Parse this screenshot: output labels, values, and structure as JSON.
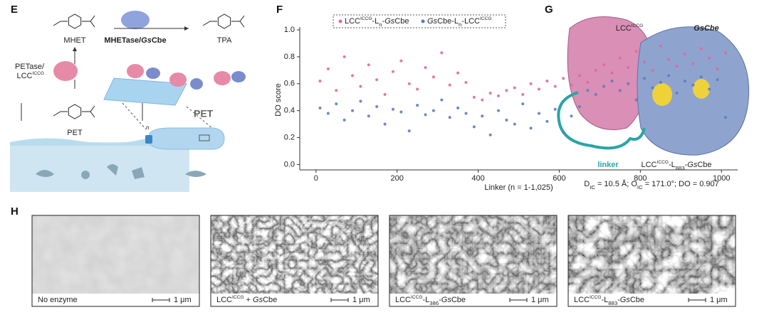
{
  "panel_labels": [
    "E",
    "F",
    "G",
    "H"
  ],
  "panel_e": {
    "mhet": "MHET",
    "tpa": "TPA",
    "pet_label": "PET",
    "pet_film": "PET",
    "n": "n",
    "enzyme_top": [
      {
        "t": "MHETase/"
      },
      {
        "t": "Gs",
        "s": "i"
      },
      {
        "t": "Cbe"
      }
    ],
    "enzyme_left_1": [
      {
        "t": "PETase/"
      }
    ],
    "enzyme_left_2": [
      {
        "t": "LCC"
      },
      {
        "t": "ICCG",
        "s": "sup"
      }
    ]
  },
  "chart_data": {
    "type": "scatter",
    "legend": "top",
    "x_label": "Linker (n = 1-1,025)",
    "y_label": "DO score",
    "xlim": [
      -40,
      1040
    ],
    "xticks": [
      0,
      200,
      400,
      600,
      800,
      1000
    ],
    "ylim": [
      -0.04,
      1.0
    ],
    "yticks": [
      {
        "value": 0,
        "label": "0.0"
      },
      0.2,
      0.4,
      0.6,
      0.8,
      {
        "value": 1,
        "label": "1.0"
      }
    ],
    "x": [
      10,
      30,
      50,
      70,
      90,
      110,
      130,
      150,
      170,
      190,
      210,
      230,
      250,
      270,
      290,
      310,
      330,
      350,
      370,
      390,
      410,
      430,
      450,
      470,
      490,
      510,
      530,
      550,
      570,
      590,
      610,
      630,
      650,
      670,
      690,
      710,
      730,
      750,
      770,
      790,
      810,
      830,
      850,
      870,
      890,
      910,
      930,
      950,
      970,
      990,
      1010
    ],
    "series": [
      {
        "name": [
          {
            "t": "LCC"
          },
          {
            "t": "ICCG",
            "s": "sup"
          },
          {
            "t": "-L"
          },
          {
            "t": "n",
            "s": "sub"
          },
          {
            "t": "-"
          },
          {
            "t": "Gs",
            "s": "i"
          },
          {
            "t": "Cbe"
          }
        ],
        "color": "#e0689a",
        "values": [
          0.62,
          0.71,
          0.55,
          0.8,
          0.66,
          0.58,
          0.74,
          0.63,
          0.52,
          0.69,
          0.77,
          0.6,
          0.56,
          0.72,
          0.65,
          0.83,
          0.59,
          0.68,
          0.61,
          0.5,
          0.48,
          0.53,
          0.51,
          0.55,
          0.57,
          0.52,
          0.6,
          0.56,
          0.62,
          0.58,
          0.64,
          0.59,
          0.66,
          0.61,
          0.7,
          0.74,
          0.68,
          0.79,
          0.72,
          0.84,
          0.76,
          0.7,
          0.88,
          0.78,
          0.73,
          0.82,
          0.75,
          0.86,
          0.79,
          0.71,
          0.83
        ]
      },
      {
        "name": [
          {
            "t": "Gs",
            "s": "i"
          },
          {
            "t": "Cbe-L"
          },
          {
            "t": "n",
            "s": "sub"
          },
          {
            "t": "-LCC"
          },
          {
            "t": "ICCG",
            "s": "sup"
          }
        ],
        "color": "#5a7cc0",
        "values": [
          0.42,
          0.38,
          0.45,
          0.33,
          0.4,
          0.47,
          0.36,
          0.43,
          0.3,
          0.41,
          0.39,
          0.25,
          0.44,
          0.37,
          0.4,
          0.48,
          0.35,
          0.42,
          0.38,
          0.28,
          0.36,
          0.22,
          0.4,
          0.33,
          0.3,
          0.45,
          0.27,
          0.38,
          0.32,
          0.41,
          0.24,
          0.36,
          0.43,
          0.55,
          0.52,
          0.58,
          0.62,
          0.55,
          0.6,
          0.48,
          0.64,
          0.57,
          0.61,
          0.66,
          0.53,
          0.62,
          0.59,
          0.65,
          0.56,
          0.63,
          0.35
        ]
      }
    ]
  },
  "panel_g": {
    "lcc": [
      {
        "t": "LCC"
      },
      {
        "t": "ICCG",
        "s": "sup"
      }
    ],
    "gscbe": [
      {
        "t": "GsCbe",
        "s": "i"
      }
    ],
    "linker": "linker",
    "construct": [
      {
        "t": "LCC"
      },
      {
        "t": "ICCG",
        "s": "sup"
      },
      {
        "t": "-L"
      },
      {
        "t": "883",
        "s": "sub"
      },
      {
        "t": "-"
      },
      {
        "t": "Gs",
        "s": "i"
      },
      {
        "t": "Cbe"
      }
    ],
    "metrics": [
      {
        "t": "D"
      },
      {
        "t": "IC",
        "s": "sub"
      },
      {
        "t": " = 10.5 Å; O"
      },
      {
        "t": "IC",
        "s": "sub"
      },
      {
        "t": " = 171.0°; DO = 0.907"
      }
    ]
  },
  "panel_h": {
    "images": [
      {
        "caption": [
          {
            "t": "No enzyme"
          }
        ],
        "scale": "1 μm"
      },
      {
        "caption": [
          {
            "t": "LCC"
          },
          {
            "t": "ICCG",
            "s": "sup"
          },
          {
            "t": " + "
          },
          {
            "t": "Gs",
            "s": "i"
          },
          {
            "t": "Cbe"
          }
        ],
        "scale": "1 μm"
      },
      {
        "caption": [
          {
            "t": "LCC"
          },
          {
            "t": "ICCG",
            "s": "sup"
          },
          {
            "t": "-L"
          },
          {
            "t": "386",
            "s": "sub"
          },
          {
            "t": "-"
          },
          {
            "t": "Gs",
            "s": "i"
          },
          {
            "t": "Cbe"
          }
        ],
        "scale": "1 μm"
      },
      {
        "caption": [
          {
            "t": "LCC"
          },
          {
            "t": "ICCG",
            "s": "sup"
          },
          {
            "t": "-L"
          },
          {
            "t": "883",
            "s": "sub"
          },
          {
            "t": "-"
          },
          {
            "t": "Gs",
            "s": "i"
          },
          {
            "t": "Cbe"
          }
        ],
        "scale": "1 μm"
      }
    ]
  }
}
